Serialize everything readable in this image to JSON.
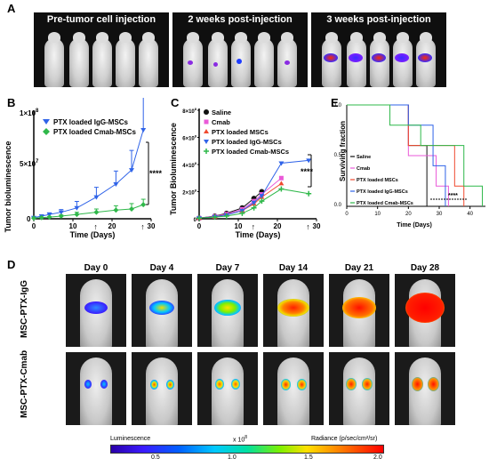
{
  "panels": {
    "A": "A",
    "B": "B",
    "C": "C",
    "D": "D",
    "E": "E"
  },
  "panelA": {
    "captions": [
      "Pre-tumor cell injection",
      "2 weeks post-injection",
      "3 weeks post-injection"
    ]
  },
  "panelB": {
    "ylabel": "Tumor bioluminescence",
    "xlabel": "Time (Days)",
    "ytop": "1×10",
    "ytop_exp": "8",
    "ymid": "5×10",
    "ymid_exp": "7",
    "yzero": "0",
    "significance": "****",
    "legend": [
      "PTX loaded IgG-MSCs",
      "PTX loaded Cmab-MSCs"
    ],
    "xticks": [
      "0",
      "10",
      "20",
      "30"
    ]
  },
  "panelC": {
    "ylabel": "Tumor Bioluminescence",
    "xlabel": "Time (Days)",
    "ytick_labels": [
      "8×10",
      "6×10",
      "4×10",
      "2×10",
      "0"
    ],
    "ytick_exp": "8",
    "significance": "****",
    "legend": [
      "Saline",
      "Cmab",
      "PTX loaded MSCs",
      "PTX loaded IgG-MSCs",
      "PTX loaded Cmab-MSCs"
    ],
    "xticks": [
      "0",
      "10",
      "20",
      "30"
    ]
  },
  "panelE": {
    "ylabel": "Surviving fraction",
    "xlabel": "Time (Days)",
    "yticks": [
      "1.0",
      "0.5",
      "0.0"
    ],
    "xticks": [
      "0",
      "10",
      "20",
      "30",
      "40"
    ],
    "significance": "****",
    "legend": [
      "Saline",
      "Cmab",
      "PTX loaded MSCs",
      "PTX loaded IgG-MSCs",
      "PTX loaded Cmab-MSCs"
    ]
  },
  "panelD": {
    "days": [
      "Day 0",
      "Day 4",
      "Day 7",
      "Day 14",
      "Day 21",
      "Day 28"
    ],
    "rows": [
      "MSC-PTX-IgG",
      "MSC-PTX-Cmab"
    ],
    "colorbar": {
      "left_label": "Luminescence",
      "mid_label": "x 10",
      "mid_exp": "8",
      "right_label": "Radiance (p/sec/cm²/sr)",
      "ticks": [
        "0.5",
        "1.0",
        "1.5",
        "2.0"
      ]
    }
  },
  "colors": {
    "igg": "#2f63e8",
    "cmab_msc": "#2fb84a",
    "saline": "#111111",
    "cmab": "#ea5ad8",
    "ptx_msc": "#f04a2f"
  },
  "chart_data": [
    {
      "type": "line",
      "xlabel": "Time (Days)",
      "ylabel": "Tumor bioluminescence",
      "ylim": [
        0,
        100000000
      ],
      "xlim": [
        0,
        30
      ],
      "series": [
        {
          "name": "PTX loaded IgG-MSCs",
          "color": "#2f63e8",
          "x": [
            0,
            2,
            4,
            7,
            11,
            16,
            21,
            25,
            28
          ],
          "y": [
            1000000,
            2500000,
            4000000,
            6000000,
            10000000,
            20000000,
            32000000,
            45000000,
            82000000
          ],
          "err": [
            500000,
            800000,
            1500000,
            2500000,
            6000000,
            9000000,
            12000000,
            18000000,
            35000000
          ]
        },
        {
          "name": "PTX loaded Cmab-MSCs",
          "color": "#2fb84a",
          "x": [
            0,
            2,
            4,
            7,
            11,
            16,
            21,
            25,
            28
          ],
          "y": [
            500000,
            1000000,
            1500000,
            2500000,
            4000000,
            6000000,
            8000000,
            9000000,
            13000000
          ],
          "err": [
            200000,
            400000,
            600000,
            1000000,
            2000000,
            3000000,
            4000000,
            5000000,
            5000000
          ]
        }
      ]
    },
    {
      "type": "line",
      "xlabel": "Time (Days)",
      "ylabel": "Tumor Bioluminescence",
      "ylim": [
        0,
        800000000
      ],
      "xlim": [
        0,
        30
      ],
      "series": [
        {
          "name": "Saline",
          "color": "#111111",
          "x": [
            0,
            4,
            7,
            11,
            14,
            16
          ],
          "y": [
            5000000,
            20000000,
            40000000,
            80000000,
            150000000,
            200000000
          ]
        },
        {
          "name": "Cmab",
          "color": "#ea5ad8",
          "x": [
            0,
            4,
            7,
            11,
            14,
            16,
            21
          ],
          "y": [
            5000000,
            18000000,
            35000000,
            70000000,
            130000000,
            180000000,
            300000000
          ]
        },
        {
          "name": "PTX loaded MSCs",
          "color": "#f04a2f",
          "x": [
            0,
            4,
            7,
            11,
            14,
            16,
            21
          ],
          "y": [
            5000000,
            15000000,
            30000000,
            60000000,
            110000000,
            160000000,
            260000000
          ]
        },
        {
          "name": "PTX loaded IgG-MSCs",
          "color": "#2f63e8",
          "x": [
            0,
            4,
            7,
            11,
            14,
            16,
            21,
            28
          ],
          "y": [
            5000000,
            15000000,
            28000000,
            60000000,
            120000000,
            170000000,
            410000000,
            430000000
          ]
        },
        {
          "name": "PTX loaded Cmab-MSCs",
          "color": "#2fb84a",
          "x": [
            0,
            4,
            7,
            11,
            14,
            16,
            21,
            28
          ],
          "y": [
            5000000,
            12000000,
            20000000,
            40000000,
            80000000,
            130000000,
            220000000,
            185000000
          ]
        }
      ]
    },
    {
      "type": "line",
      "xlabel": "Time (Days)",
      "ylabel": "Surviving fraction",
      "ylim": [
        0,
        1
      ],
      "xlim": [
        0,
        45
      ],
      "series": [
        {
          "name": "Saline",
          "color": "#111111",
          "x": [
            0,
            20,
            20,
            26,
            26
          ],
          "y": [
            1.0,
            1.0,
            0.6,
            0.6,
            0.0
          ]
        },
        {
          "name": "Cmab",
          "color": "#ea5ad8",
          "x": [
            0,
            20,
            20,
            29,
            29,
            33,
            33
          ],
          "y": [
            1.0,
            1.0,
            0.5,
            0.5,
            0.2,
            0.2,
            0.0
          ]
        },
        {
          "name": "PTX loaded MSCs",
          "color": "#f04a2f",
          "x": [
            0,
            20,
            20,
            35,
            35,
            38,
            38
          ],
          "y": [
            1.0,
            1.0,
            0.6,
            0.6,
            0.2,
            0.2,
            0.0
          ]
        },
        {
          "name": "PTX loaded IgG-MSCs",
          "color": "#2f63e8",
          "x": [
            0,
            20,
            20,
            28,
            28,
            32,
            32
          ],
          "y": [
            1.0,
            1.0,
            0.8,
            0.8,
            0.4,
            0.4,
            0.0
          ]
        },
        {
          "name": "PTX loaded Cmab-MSCs",
          "color": "#2fb84a",
          "x": [
            0,
            14,
            14,
            24,
            24,
            38,
            38,
            44,
            44
          ],
          "y": [
            1.0,
            1.0,
            0.8,
            0.8,
            0.6,
            0.6,
            0.2,
            0.2,
            0.0
          ]
        }
      ]
    }
  ]
}
